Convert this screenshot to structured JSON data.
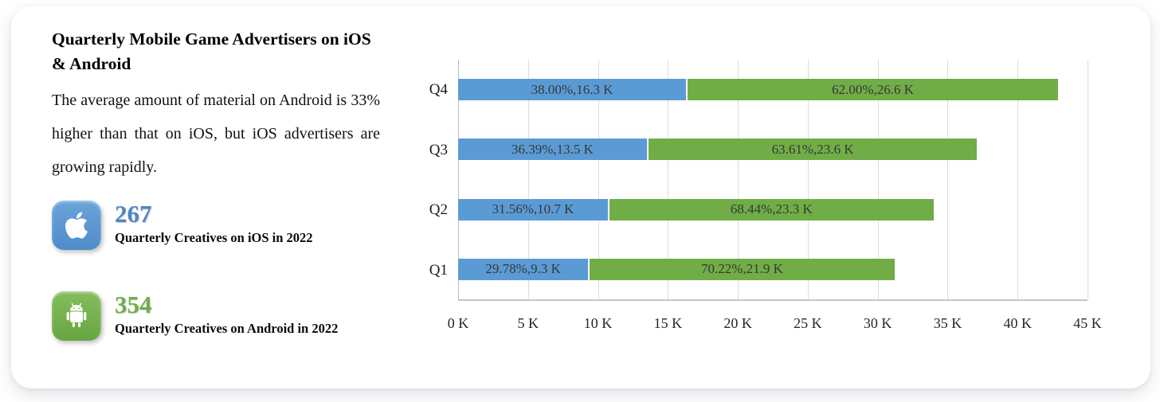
{
  "left_panel": {
    "title": "Quarterly Mobile Game Advertisers on iOS & Android",
    "description": "The average amount of material on Android is 33% higher than that on iOS, but iOS advertisers are growing rapidly.",
    "stats": [
      {
        "id": "ios",
        "icon": "apple-icon",
        "value": "267",
        "label": "Quarterly Creatives on iOS in 2022",
        "accent_color": "#4e86c6"
      },
      {
        "id": "android",
        "icon": "android-icon",
        "value": "354",
        "label": "Quarterly Creatives on Android in 2022",
        "accent_color": "#6fae47"
      }
    ]
  },
  "chart_data": {
    "type": "bar",
    "orientation": "horizontal",
    "stacked": true,
    "categories": [
      "Q4",
      "Q3",
      "Q2",
      "Q1"
    ],
    "series": [
      {
        "name": "iOS",
        "color": "#5b9bd5",
        "values": [
          16.3,
          13.5,
          10.7,
          9.3
        ],
        "labels": [
          "38.00%,16.3 K",
          "36.39%,13.5 K",
          "31.56%,10.7 K",
          "29.78%,9.3 K"
        ]
      },
      {
        "name": "Android",
        "color": "#70ad47",
        "values": [
          26.6,
          23.6,
          23.3,
          21.9
        ],
        "labels": [
          "62.00%,26.6 K",
          "63.61%,23.6 K",
          "68.44%,23.3 K",
          "70.22%,21.9 K"
        ]
      }
    ],
    "x_unit": "K",
    "xlim": [
      0,
      45
    ],
    "x_ticks": [
      "0 K",
      "5 K",
      "10 K",
      "15 K",
      "20 K",
      "25 K",
      "30 K",
      "35 K",
      "40 K",
      "45 K"
    ],
    "grid": true,
    "legend": "none",
    "bar_label_color": "#373737"
  }
}
